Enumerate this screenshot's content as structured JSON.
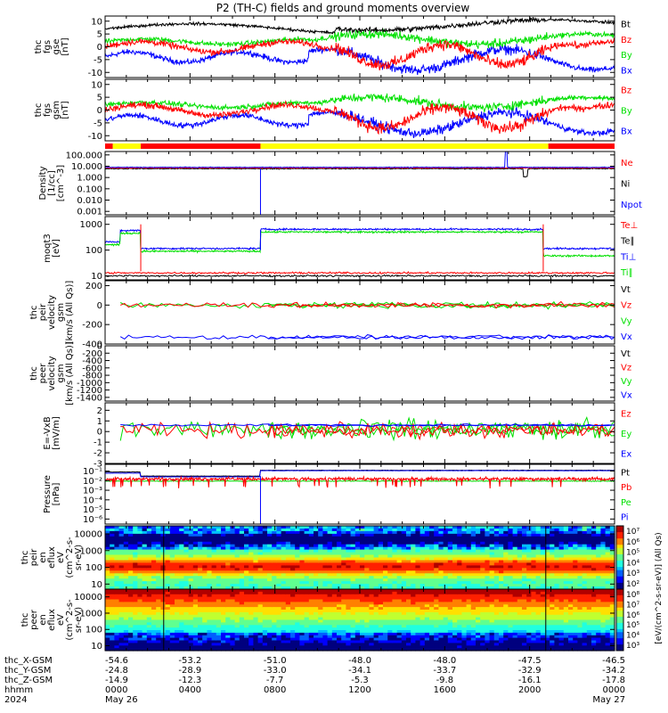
{
  "title": "P2 (TH-C) fields and ground moments overview",
  "colors": {
    "black": "#000000",
    "red": "#ff0000",
    "green": "#00e000",
    "blue": "#0000ff",
    "yellow": "#ffff00"
  },
  "chart_data": [
    {
      "type": "line",
      "id": "fgs_gse",
      "ylabel": [
        "thc",
        "fgs",
        "gse",
        "[nT]"
      ],
      "ylim": [
        -12,
        12
      ],
      "ticks": [
        "10",
        "5",
        "0",
        "-5",
        "-10"
      ],
      "tick_values": [
        10,
        5,
        0,
        -5,
        -10
      ],
      "legend": [
        {
          "name": "Bt",
          "color": "black"
        },
        {
          "name": "Bz",
          "color": "red"
        },
        {
          "name": "By",
          "color": "green"
        },
        {
          "name": "Bx",
          "color": "blue"
        }
      ]
    },
    {
      "type": "line",
      "id": "fgs_gsm",
      "ylabel": [
        "thc",
        "fgs",
        "gsm",
        "[nT]"
      ],
      "ylim": [
        -12,
        12
      ],
      "ticks": [
        "10",
        "5",
        "0",
        "-5",
        "-10"
      ],
      "tick_values": [
        10,
        5,
        0,
        -5,
        -10
      ],
      "legend": [
        {
          "name": "Bz",
          "color": "red"
        },
        {
          "name": "By",
          "color": "green"
        },
        {
          "name": "Bx",
          "color": "blue"
        }
      ]
    },
    {
      "type": "line",
      "id": "density",
      "ylabel": [
        "Density",
        "[1/cc]",
        "[cm^-3]"
      ],
      "log": true,
      "ylim": [
        0.0005,
        200
      ],
      "ticks": [
        "100.000",
        "10.000",
        "1.000",
        "0.100",
        "0.010",
        "0.001"
      ],
      "tick_values": [
        100,
        10,
        1,
        0.1,
        0.01,
        0.001
      ],
      "legend": [
        {
          "name": "Ne",
          "color": "red"
        },
        {
          "name": "Ni",
          "color": "black"
        },
        {
          "name": "Npot",
          "color": "blue"
        }
      ]
    },
    {
      "type": "line",
      "id": "temps",
      "ylabel": [
        "moqt3",
        "[eV]"
      ],
      "log": true,
      "ylim": [
        7,
        2000
      ],
      "ticks": [
        "1000",
        "100",
        "10"
      ],
      "tick_values": [
        1000,
        100,
        10
      ],
      "legend": [
        {
          "name": "Te⊥",
          "color": "red"
        },
        {
          "name": "Te∥",
          "color": "black"
        },
        {
          "name": "Ti⊥",
          "color": "blue"
        },
        {
          "name": "Ti∥",
          "color": "green"
        }
      ]
    },
    {
      "type": "line",
      "id": "peir_vel",
      "ylabel": [
        "thc",
        "peir",
        "velocity",
        "gsm",
        "[km/s (All Qs)]"
      ],
      "ylim": [
        -400,
        250
      ],
      "ticks": [
        "200",
        "0",
        "-200",
        "-400"
      ],
      "tick_values": [
        200,
        0,
        -200,
        -400
      ],
      "legend": [
        {
          "name": "Vt",
          "color": "black"
        },
        {
          "name": "Vz",
          "color": "red"
        },
        {
          "name": "Vy",
          "color": "green"
        },
        {
          "name": "Vx",
          "color": "blue"
        }
      ]
    },
    {
      "type": "line",
      "id": "peer_vel",
      "ylabel": [
        "thc",
        "peer",
        "velocity",
        "gsm",
        "[km/s (All Qs)]"
      ],
      "ylim": [
        -1500,
        0
      ],
      "ticks": [
        "0",
        "-200",
        "-400",
        "-600",
        "-800",
        "-1000",
        "-1200",
        "-1400"
      ],
      "tick_values": [
        0,
        -200,
        -400,
        -600,
        -800,
        -1000,
        -1200,
        -1400
      ],
      "legend": [
        {
          "name": "Vt",
          "color": "black"
        },
        {
          "name": "Vz",
          "color": "red"
        },
        {
          "name": "Vy",
          "color": "green"
        },
        {
          "name": "Vx",
          "color": "blue"
        }
      ]
    },
    {
      "type": "line",
      "id": "efield",
      "ylabel": [
        "E=-VxB",
        "[mV/m]"
      ],
      "ylim": [
        -3,
        2.7
      ],
      "ticks": [
        "2",
        "1",
        "0",
        "-1",
        "-2",
        "-3"
      ],
      "tick_values": [
        2,
        1,
        0,
        -1,
        -2,
        -3
      ],
      "legend": [
        {
          "name": "Ez",
          "color": "red"
        },
        {
          "name": "Ey",
          "color": "green"
        },
        {
          "name": "Ex",
          "color": "blue"
        }
      ]
    },
    {
      "type": "line",
      "id": "pressure",
      "ylabel": [
        "Pressure",
        "[nPa]"
      ],
      "log": true,
      "ylim": [
        3e-07,
        0.5
      ],
      "ticks": [
        "10⁻¹",
        "10⁻²",
        "10⁻³",
        "10⁻⁴",
        "10⁻⁵",
        "10⁻⁶"
      ],
      "tick_values": [
        0.1,
        0.01,
        0.001,
        0.0001,
        1e-05,
        1e-06
      ],
      "legend": [
        {
          "name": "Pt",
          "color": "black"
        },
        {
          "name": "Pb",
          "color": "red"
        },
        {
          "name": "Pe",
          "color": "green"
        },
        {
          "name": "Pi",
          "color": "blue"
        }
      ]
    },
    {
      "type": "heatmap",
      "id": "peir_spec",
      "ylabel": [
        "thc",
        "peir",
        "en",
        "eflux",
        "eV",
        "(cm^2-s-",
        "sr-eV)"
      ],
      "log": true,
      "ylim": [
        5,
        30000
      ],
      "ticks": [
        "10000",
        "1000",
        "100",
        "10"
      ],
      "tick_values": [
        10000,
        1000,
        100,
        10
      ]
    },
    {
      "type": "heatmap",
      "id": "peer_spec",
      "ylabel": [
        "thc",
        "peer",
        "en",
        "eflux",
        "eV",
        "(cm^2-s-",
        "sr-eV)"
      ],
      "log": true,
      "ylim": [
        5,
        30000
      ],
      "ticks": [
        "10000",
        "1000",
        "100",
        "10"
      ],
      "tick_values": [
        10000,
        1000,
        100,
        10
      ]
    }
  ],
  "colorbar": {
    "top_ticks": [
      "10⁷",
      "10⁶",
      "10⁵",
      "10⁴",
      "10³",
      "10²"
    ],
    "bottom_ticks": [
      "10⁸",
      "10⁷",
      "10⁶",
      "10⁵",
      "10⁴",
      "10³"
    ],
    "label": "[eV/(cm^2-s-sr-eV)] (All Qs)"
  },
  "bar_segments": [
    {
      "start": 0.0,
      "end": 0.015,
      "color": "red"
    },
    {
      "start": 0.015,
      "end": 0.07,
      "color": "yellow"
    },
    {
      "start": 0.07,
      "end": 0.305,
      "color": "red"
    },
    {
      "start": 0.305,
      "end": 0.87,
      "color": "yellow"
    },
    {
      "start": 0.87,
      "end": 1.0,
      "color": "red"
    }
  ],
  "xaxis": {
    "row_labels": [
      "thc_X-GSM",
      "thc_Y-GSM",
      "thc_Z-GSM",
      "hhmm",
      "2024"
    ],
    "columns": [
      {
        "x": "-54.6",
        "y": "-24.8",
        "z": "-14.9",
        "t": "0000",
        "d": "May 26"
      },
      {
        "x": "-53.2",
        "y": "-28.9",
        "z": "-12.3",
        "t": "0400",
        "d": ""
      },
      {
        "x": "-51.0",
        "y": "-33.0",
        "z": "-7.7",
        "t": "0800",
        "d": ""
      },
      {
        "x": "-48.0",
        "y": "-34.1",
        "z": "-5.3",
        "t": "1200",
        "d": ""
      },
      {
        "x": "-48.0",
        "y": "-33.7",
        "z": "-9.8",
        "t": "1600",
        "d": ""
      },
      {
        "x": "-47.5",
        "y": "-32.9",
        "z": "-16.1",
        "t": "2000",
        "d": ""
      },
      {
        "x": "-46.5",
        "y": "-34.2",
        "z": "-17.8",
        "t": "0000",
        "d": "May 27"
      }
    ]
  }
}
